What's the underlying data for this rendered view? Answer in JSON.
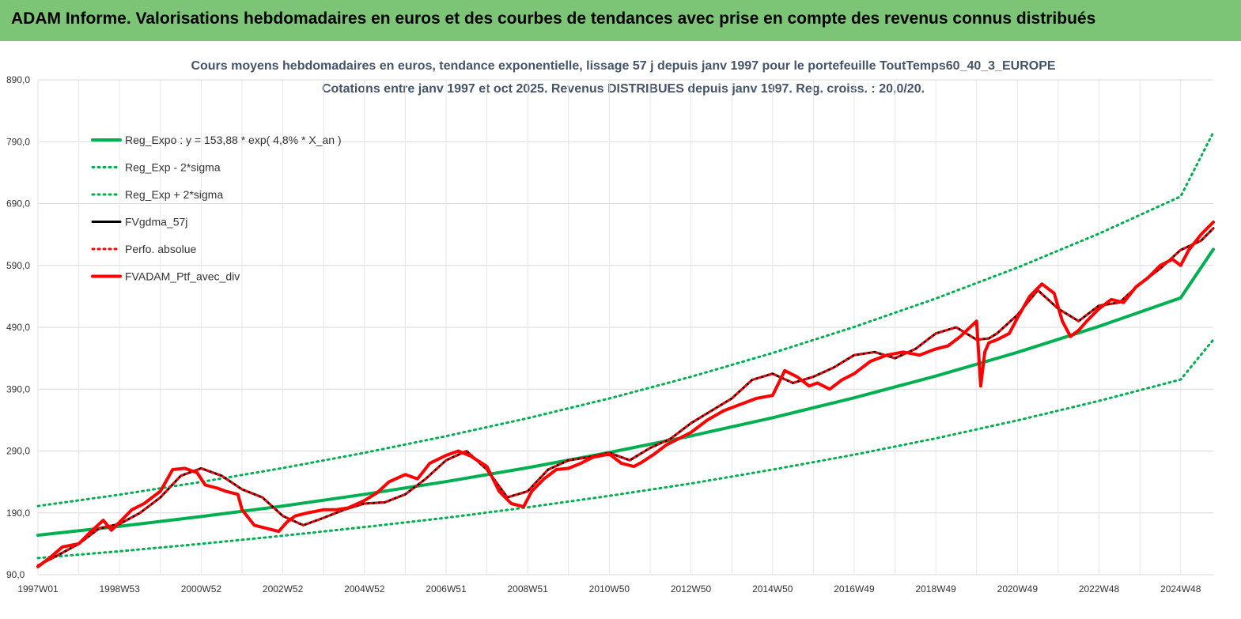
{
  "header": {
    "title": "ADAM Informe. Valorisations hebdomadaires en euros et des courbes de tendances avec prise en compte des revenus connus distribués"
  },
  "chart_data": {
    "type": "line",
    "title": "Cours moyens hebdomadaires  en euros, tendance exponentielle, lissage 57 j depuis janv 1997 pour le portefeuille ToutTemps60_40_3_EUROPE",
    "subtitle": "Cotations entre janv 1997 et oct 2025. Revenus DISTRIBUES depuis janv 1997. Reg. croiss. : 20,0/20.",
    "xlabel": "",
    "ylabel": "",
    "ylim": [
      90,
      890
    ],
    "xlim": [
      1997.0,
      2025.8
    ],
    "y_ticks": [
      "890,0",
      "790,0",
      "690,0",
      "590,0",
      "490,0",
      "390,0",
      "290,0",
      "190,0",
      "90,0"
    ],
    "x_ticks": [
      {
        "label": "1997W01",
        "x": 1997.0
      },
      {
        "label": "1998W53",
        "x": 1999.0
      },
      {
        "label": "2000W52",
        "x": 2001.0
      },
      {
        "label": "2002W52",
        "x": 2003.0
      },
      {
        "label": "2004W52",
        "x": 2005.0
      },
      {
        "label": "2006W51",
        "x": 2007.0
      },
      {
        "label": "2008W51",
        "x": 2009.0
      },
      {
        "label": "2010W50",
        "x": 2011.0
      },
      {
        "label": "2012W50",
        "x": 2013.0
      },
      {
        "label": "2014W50",
        "x": 2015.0
      },
      {
        "label": "2016W49",
        "x": 2017.0
      },
      {
        "label": "2018W49",
        "x": 2019.0
      },
      {
        "label": "2020W49",
        "x": 2021.0
      },
      {
        "label": "2022W48",
        "x": 2023.0
      },
      {
        "label": "2024W48",
        "x": 2025.0
      }
    ],
    "grid": true,
    "legend_position": "top-left",
    "series": [
      {
        "name": "Reg_Expo : y = 153,88 * exp( 4,8% *  X_an )",
        "color": "#00b050",
        "style": "solid",
        "width": 4,
        "x": [
          1997.0,
          1999.0,
          2001.0,
          2003.0,
          2005.0,
          2007.0,
          2009.0,
          2011.0,
          2013.0,
          2015.0,
          2017.0,
          2019.0,
          2021.0,
          2023.0,
          2025.0,
          2025.8
        ],
        "y": [
          153.9,
          168.3,
          184.0,
          201.1,
          220.0,
          240.5,
          263.0,
          287.6,
          314.4,
          343.8,
          376.0,
          411.1,
          449.5,
          491.5,
          537.5,
          616.0
        ]
      },
      {
        "name": "Reg_Exp - 2*sigma",
        "color": "#00b050",
        "style": "dotted",
        "width": 3,
        "x": [
          1997.0,
          1999.0,
          2001.0,
          2003.0,
          2005.0,
          2007.0,
          2009.0,
          2011.0,
          2013.0,
          2015.0,
          2017.0,
          2019.0,
          2021.0,
          2023.0,
          2025.0,
          2025.8
        ],
        "y": [
          117.0,
          128.0,
          140.0,
          153.0,
          167.0,
          182.0,
          199.0,
          217.5,
          237.5,
          260.0,
          284.0,
          310.5,
          339.5,
          371.0,
          405.5,
          470.0
        ]
      },
      {
        "name": "Reg_Exp + 2*sigma",
        "color": "#00b050",
        "style": "dotted",
        "width": 3,
        "x": [
          1997.0,
          1999.0,
          2001.0,
          2003.0,
          2005.0,
          2007.0,
          2009.0,
          2011.0,
          2013.0,
          2015.0,
          2017.0,
          2019.0,
          2021.0,
          2023.0,
          2025.0,
          2025.8
        ],
        "y": [
          201.0,
          219.5,
          240.0,
          262.5,
          287.0,
          314.0,
          343.0,
          375.0,
          410.0,
          448.5,
          490.5,
          536.5,
          586.5,
          641.5,
          701.5,
          805.0
        ]
      },
      {
        "name": "FVgdma_57j",
        "color": "#000000",
        "style": "solid",
        "width": 3,
        "x": [
          1997.0,
          1997.5,
          1998.0,
          1998.5,
          1999.0,
          1999.5,
          2000.0,
          2000.5,
          2001.0,
          2001.5,
          2002.0,
          2002.5,
          2003.0,
          2003.5,
          2004.0,
          2004.5,
          2005.0,
          2005.5,
          2006.0,
          2006.5,
          2007.0,
          2007.5,
          2008.0,
          2008.5,
          2009.0,
          2009.5,
          2010.0,
          2010.5,
          2011.0,
          2011.5,
          2012.0,
          2012.5,
          2013.0,
          2013.5,
          2014.0,
          2014.5,
          2015.0,
          2015.5,
          2016.0,
          2016.5,
          2017.0,
          2017.5,
          2018.0,
          2018.5,
          2019.0,
          2019.5,
          2020.0,
          2020.3,
          2020.5,
          2021.0,
          2021.5,
          2022.0,
          2022.5,
          2023.0,
          2023.5,
          2024.0,
          2024.5,
          2025.0,
          2025.5,
          2025.8
        ],
        "y": [
          105,
          122,
          140,
          165,
          172,
          190,
          215,
          250,
          262,
          250,
          228,
          215,
          185,
          170,
          182,
          195,
          205,
          207,
          220,
          245,
          275,
          290,
          260,
          215,
          225,
          260,
          275,
          280,
          287,
          275,
          295,
          310,
          335,
          355,
          375,
          405,
          415,
          400,
          410,
          425,
          445,
          450,
          440,
          455,
          480,
          490,
          470,
          472,
          480,
          510,
          550,
          520,
          500,
          525,
          530,
          560,
          585,
          615,
          630,
          650
        ]
      },
      {
        "name": "Perfo. absolue",
        "color": "#ff0000",
        "style": "dotted",
        "width": 3,
        "x": [
          1997.0,
          1997.5,
          1998.0,
          1998.5,
          1999.0,
          1999.5,
          2000.0,
          2000.5,
          2001.0,
          2001.5,
          2002.0,
          2002.5,
          2003.0,
          2003.5,
          2004.0,
          2004.5,
          2005.0,
          2005.5,
          2006.0,
          2006.5,
          2007.0,
          2007.5,
          2008.0,
          2008.5,
          2009.0,
          2009.5,
          2010.0,
          2010.5,
          2011.0,
          2011.5,
          2012.0,
          2012.5,
          2013.0,
          2013.5,
          2014.0,
          2014.5,
          2015.0,
          2015.5,
          2016.0,
          2016.5,
          2017.0,
          2017.5,
          2018.0,
          2018.5,
          2019.0,
          2019.5,
          2020.0,
          2020.3,
          2020.5,
          2021.0,
          2021.5,
          2022.0,
          2022.5,
          2023.0,
          2023.5,
          2024.0,
          2024.5,
          2025.0,
          2025.5,
          2025.8
        ],
        "y": [
          105,
          122,
          140,
          165,
          172,
          190,
          215,
          250,
          262,
          250,
          228,
          215,
          185,
          170,
          182,
          195,
          205,
          207,
          220,
          245,
          275,
          290,
          260,
          215,
          225,
          260,
          275,
          280,
          287,
          275,
          295,
          310,
          335,
          355,
          375,
          405,
          415,
          400,
          410,
          425,
          445,
          450,
          440,
          455,
          480,
          490,
          470,
          472,
          480,
          510,
          550,
          520,
          500,
          525,
          530,
          560,
          585,
          615,
          630,
          650
        ]
      },
      {
        "name": "FVADAM_Ptf_avec_div",
        "color": "#ff0000",
        "style": "solid",
        "width": 4,
        "x": [
          1997.0,
          1997.3,
          1997.6,
          1998.0,
          1998.3,
          1998.6,
          1998.8,
          1999.0,
          1999.3,
          1999.6,
          2000.0,
          2000.3,
          2000.6,
          2000.9,
          2001.1,
          2001.4,
          2001.6,
          2001.9,
          2002.0,
          2002.3,
          2002.6,
          2002.9,
          2003.1,
          2003.3,
          2003.6,
          2004.0,
          2004.3,
          2004.6,
          2005.0,
          2005.3,
          2005.6,
          2006.0,
          2006.3,
          2006.6,
          2007.0,
          2007.3,
          2007.6,
          2008.0,
          2008.3,
          2008.6,
          2008.9,
          2009.1,
          2009.4,
          2009.7,
          2010.0,
          2010.3,
          2010.6,
          2011.0,
          2011.3,
          2011.6,
          2011.8,
          2012.1,
          2012.4,
          2012.7,
          2013.0,
          2013.4,
          2013.8,
          2014.2,
          2014.6,
          2015.0,
          2015.3,
          2015.6,
          2015.9,
          2016.1,
          2016.4,
          2016.7,
          2017.0,
          2017.4,
          2017.8,
          2018.2,
          2018.6,
          2019.0,
          2019.3,
          2019.6,
          2020.0,
          2020.1,
          2020.2,
          2020.3,
          2020.5,
          2020.8,
          2021.0,
          2021.3,
          2021.6,
          2021.9,
          2022.1,
          2022.3,
          2022.5,
          2022.7,
          2023.0,
          2023.3,
          2023.6,
          2023.9,
          2024.2,
          2024.5,
          2024.8,
          2025.0,
          2025.2,
          2025.5,
          2025.8
        ],
        "y": [
          103,
          118,
          135,
          140,
          160,
          178,
          162,
          175,
          195,
          205,
          225,
          260,
          262,
          255,
          235,
          230,
          225,
          220,
          195,
          170,
          165,
          160,
          175,
          185,
          190,
          195,
          195,
          198,
          210,
          222,
          240,
          252,
          245,
          270,
          283,
          290,
          282,
          265,
          225,
          205,
          200,
          225,
          245,
          260,
          262,
          270,
          280,
          285,
          270,
          265,
          272,
          285,
          300,
          310,
          320,
          340,
          355,
          365,
          375,
          380,
          420,
          410,
          395,
          400,
          390,
          405,
          415,
          435,
          445,
          450,
          445,
          455,
          460,
          475,
          500,
          395,
          450,
          465,
          470,
          480,
          505,
          540,
          560,
          545,
          500,
          475,
          485,
          500,
          520,
          535,
          530,
          555,
          570,
          590,
          600,
          590,
          615,
          640,
          660
        ]
      }
    ]
  }
}
